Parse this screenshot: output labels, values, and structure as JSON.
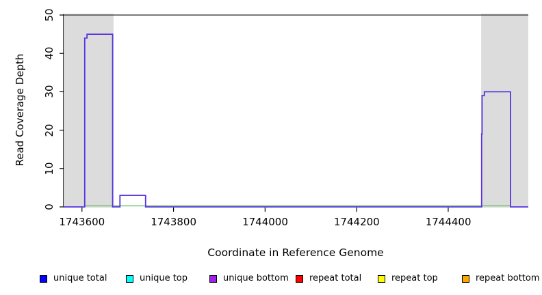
{
  "chart_data": {
    "type": "area",
    "title": "",
    "xlabel": "Coordinate in Reference Genome",
    "ylabel": "Read Coverage Depth",
    "xlim": [
      1743560,
      1744575
    ],
    "ylim": [
      0,
      50
    ],
    "x_ticks": [
      1743600,
      1743800,
      1744000,
      1744200,
      1744400
    ],
    "y_ticks": [
      0,
      10,
      20,
      30,
      40,
      50
    ],
    "grid": false,
    "legend_position": "bottom",
    "max_depth_line": 50,
    "colors": {
      "background": "#ffffff",
      "shading": "#dcdcdc",
      "cap_line": "#4d4d4d",
      "axis": "#000000",
      "unique_line": "#5733e1",
      "zero_overlay_line": "#63c063"
    },
    "shaded_regions": [
      {
        "x0": 1743563,
        "x1": 1743669
      },
      {
        "x0": 1744472,
        "x1": 1744575
      }
    ],
    "series": [
      {
        "name": "covered-zero-baseline",
        "color": "#63c063",
        "width": 1.4,
        "dy": -1.6,
        "steps": [
          {
            "start": 1743607,
            "end": 1744536,
            "depth": 0
          }
        ]
      },
      {
        "name": "unique-coverage",
        "color": "#5733e1",
        "width": 1.8,
        "dy": 0,
        "steps": [
          {
            "start": 1743560,
            "end": 1743606,
            "depth": 0
          },
          {
            "start": 1743606,
            "end": 1743611,
            "depth": 44
          },
          {
            "start": 1743611,
            "end": 1743667,
            "depth": 45
          },
          {
            "start": 1743667,
            "end": 1743683,
            "depth": 0
          },
          {
            "start": 1743683,
            "end": 1743739,
            "depth": 3
          },
          {
            "start": 1743739,
            "end": 1744473,
            "depth": 0
          },
          {
            "start": 1744473,
            "end": 1744474,
            "depth": 19
          },
          {
            "start": 1744474,
            "end": 1744479,
            "depth": 29
          },
          {
            "start": 1744479,
            "end": 1744536,
            "depth": 30
          },
          {
            "start": 1744536,
            "end": 1744575,
            "depth": 0
          }
        ]
      }
    ],
    "legend": [
      {
        "label": "unique total",
        "color": "#0000ff"
      },
      {
        "label": "unique top",
        "color": "#00ffff"
      },
      {
        "label": "unique bottom",
        "color": "#a020f0"
      },
      {
        "label": "repeat total",
        "color": "#ff0000"
      },
      {
        "label": "repeat top",
        "color": "#ffff00"
      },
      {
        "label": "repeat bottom",
        "color": "#ffa500"
      }
    ]
  }
}
